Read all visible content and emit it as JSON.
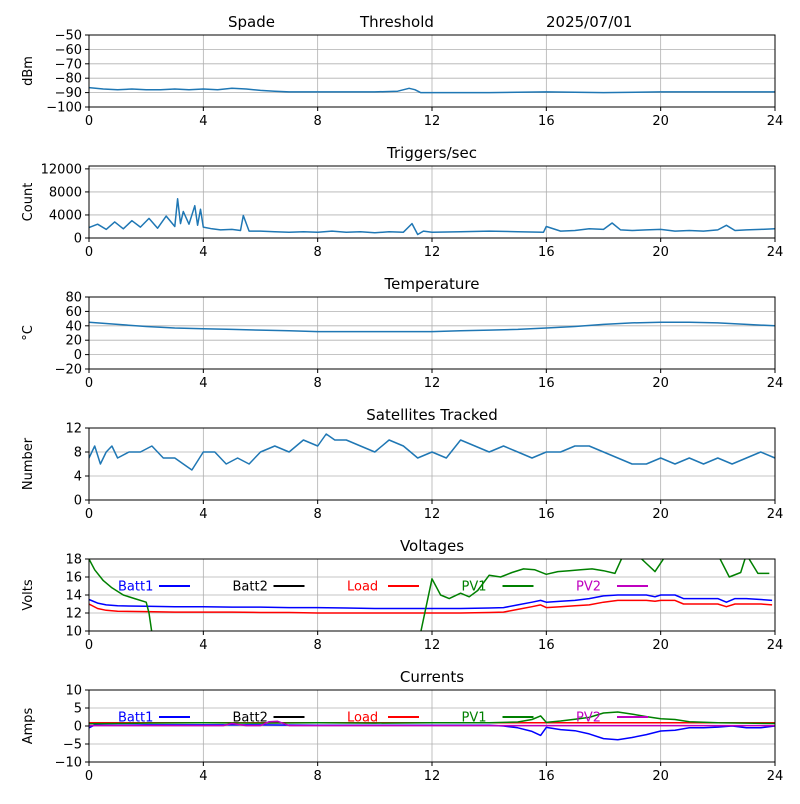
{
  "header": {
    "site": "Spade",
    "mode": "Threshold",
    "date": "2025/07/01"
  },
  "colors": {
    "default_line": "#1f77b4",
    "grid": "#b0b0b0",
    "batt1": "#0000ff",
    "batt2": "#000000",
    "load": "#ff0000",
    "pv1": "#008000",
    "pv2": "#bf00bf"
  },
  "chart_data": [
    {
      "type": "line",
      "title": "",
      "ylabel": "dBm",
      "xlim": [
        0,
        24
      ],
      "ylim": [
        -100,
        -50
      ],
      "xticks": [
        0,
        4,
        8,
        12,
        16,
        20,
        24
      ],
      "yticks": [
        -100,
        -90,
        -80,
        -70,
        -60,
        -50
      ],
      "grid": true,
      "series": [
        {
          "name": "",
          "color": "#1f77b4",
          "x": [
            0,
            0.5,
            1,
            1.5,
            2,
            2.5,
            3,
            3.5,
            4,
            4.5,
            5,
            5.5,
            6,
            6.5,
            7,
            8,
            9,
            10,
            10.8,
            11.2,
            11.4,
            11.6,
            12,
            14,
            16,
            18,
            20,
            22,
            24
          ],
          "y": [
            -86.5,
            -87.5,
            -88,
            -87.5,
            -88,
            -88,
            -87.5,
            -88,
            -87.5,
            -88,
            -87,
            -87.5,
            -88.5,
            -89,
            -89.5,
            -89.5,
            -89.5,
            -89.5,
            -89,
            -87,
            -88,
            -90,
            -90,
            -90,
            -89.5,
            -90,
            -89.5,
            -89.5,
            -89.5
          ]
        }
      ]
    },
    {
      "type": "line",
      "title": "Triggers/sec",
      "ylabel": "Count",
      "xlim": [
        0,
        24
      ],
      "ylim": [
        0,
        12500
      ],
      "xticks": [
        0,
        4,
        8,
        12,
        16,
        20,
        24
      ],
      "yticks": [
        0,
        4000,
        8000,
        12000
      ],
      "grid": true,
      "series": [
        {
          "name": "",
          "color": "#1f77b4",
          "x": [
            0,
            0.3,
            0.6,
            0.9,
            1.2,
            1.5,
            1.8,
            2.1,
            2.4,
            2.7,
            3.0,
            3.1,
            3.2,
            3.3,
            3.5,
            3.7,
            3.8,
            3.9,
            4.0,
            4.3,
            4.6,
            5.0,
            5.3,
            5.4,
            5.6,
            6.0,
            6.5,
            7.0,
            7.5,
            8.0,
            8.5,
            9.0,
            9.5,
            10.0,
            10.5,
            11.0,
            11.3,
            11.5,
            11.7,
            12.0,
            13,
            14,
            15,
            15.9,
            16.0,
            16.5,
            17,
            17.5,
            18,
            18.3,
            18.6,
            19,
            19.5,
            20,
            20.5,
            21,
            21.5,
            22,
            22.3,
            22.6,
            23,
            23.5,
            24
          ],
          "y": [
            1800,
            2400,
            1500,
            2800,
            1600,
            3000,
            1900,
            3400,
            1700,
            3800,
            2000,
            6800,
            2500,
            4600,
            2400,
            5600,
            2200,
            5000,
            1900,
            1600,
            1400,
            1500,
            1300,
            3900,
            1200,
            1200,
            1100,
            1000,
            1100,
            1000,
            1200,
            1000,
            1100,
            900,
            1100,
            1000,
            2500,
            600,
            1200,
            1000,
            1100,
            1200,
            1100,
            1000,
            2000,
            1200,
            1300,
            1600,
            1500,
            2600,
            1400,
            1300,
            1400,
            1500,
            1200,
            1300,
            1200,
            1400,
            2200,
            1300,
            1400,
            1500,
            1600
          ]
        }
      ]
    },
    {
      "type": "line",
      "title": "Temperature",
      "ylabel": "°C",
      "xlim": [
        0,
        24
      ],
      "ylim": [
        -20,
        80
      ],
      "xticks": [
        0,
        4,
        8,
        12,
        16,
        20,
        24
      ],
      "yticks": [
        -20,
        0,
        20,
        40,
        60,
        80
      ],
      "grid": true,
      "series": [
        {
          "name": "",
          "color": "#1f77b4",
          "x": [
            0,
            1,
            2,
            3,
            4,
            5,
            6,
            7,
            8,
            9,
            10,
            11,
            12,
            13,
            14,
            15,
            16,
            17,
            18,
            19,
            20,
            21,
            22,
            23,
            24
          ],
          "y": [
            45,
            42,
            39,
            37,
            36,
            35,
            34,
            33,
            32,
            32,
            32,
            32,
            32,
            33,
            34,
            35,
            37,
            39,
            42,
            44,
            45,
            45,
            44,
            42,
            40
          ]
        }
      ]
    },
    {
      "type": "line",
      "title": "Satellites Tracked",
      "ylabel": "Number",
      "xlim": [
        0,
        24
      ],
      "ylim": [
        0,
        12
      ],
      "xticks": [
        0,
        4,
        8,
        12,
        16,
        20,
        24
      ],
      "yticks": [
        0,
        4,
        8,
        12
      ],
      "grid": true,
      "series": [
        {
          "name": "",
          "color": "#1f77b4",
          "x": [
            0,
            0.2,
            0.4,
            0.6,
            0.8,
            1.0,
            1.4,
            1.8,
            2.2,
            2.6,
            3.0,
            3.3,
            3.6,
            4.0,
            4.4,
            4.8,
            5.2,
            5.6,
            6.0,
            6.5,
            7.0,
            7.5,
            8.0,
            8.3,
            8.6,
            9.0,
            9.5,
            10.0,
            10.5,
            11.0,
            11.5,
            12.0,
            12.5,
            13.0,
            13.5,
            14.0,
            14.5,
            15.0,
            15.5,
            16.0,
            16.5,
            17.0,
            17.5,
            18.0,
            18.5,
            19.0,
            19.5,
            20.0,
            20.5,
            21.0,
            21.5,
            22.0,
            22.5,
            23.0,
            23.5,
            24
          ],
          "y": [
            7,
            9,
            6,
            8,
            9,
            7,
            8,
            8,
            9,
            7,
            7,
            6,
            5,
            8,
            8,
            6,
            7,
            6,
            8,
            9,
            8,
            10,
            9,
            11,
            10,
            10,
            9,
            8,
            10,
            9,
            7,
            8,
            7,
            10,
            9,
            8,
            9,
            8,
            7,
            8,
            8,
            9,
            9,
            8,
            7,
            6,
            6,
            7,
            6,
            7,
            6,
            7,
            6,
            7,
            8,
            7
          ]
        }
      ]
    },
    {
      "type": "line",
      "title": "Voltages",
      "ylabel": "Volts",
      "xlim": [
        0,
        24
      ],
      "ylim": [
        10,
        18
      ],
      "xticks": [
        0,
        4,
        8,
        12,
        16,
        20,
        24
      ],
      "yticks": [
        10,
        12,
        14,
        16,
        18
      ],
      "grid": true,
      "legend": "top, single row",
      "series": [
        {
          "name": "Batt1",
          "color": "#0000ff",
          "x": [
            0,
            0.3,
            0.6,
            1,
            2,
            3,
            4,
            5,
            6,
            7,
            8,
            9,
            10,
            11,
            12,
            13,
            14,
            14.5,
            15,
            15.5,
            15.8,
            16,
            16.5,
            17,
            17.5,
            18,
            18.5,
            19,
            19.5,
            19.8,
            20,
            20.5,
            20.8,
            21,
            21.5,
            22,
            22.3,
            22.6,
            23,
            23.5,
            23.9
          ],
          "y": [
            13.5,
            13.1,
            12.9,
            12.8,
            12.75,
            12.7,
            12.7,
            12.65,
            12.65,
            12.6,
            12.6,
            12.55,
            12.5,
            12.5,
            12.5,
            12.5,
            12.55,
            12.6,
            12.9,
            13.2,
            13.4,
            13.2,
            13.3,
            13.4,
            13.6,
            13.9,
            14.0,
            14.0,
            14.0,
            13.8,
            14.0,
            14.0,
            13.6,
            13.6,
            13.6,
            13.6,
            13.2,
            13.6,
            13.6,
            13.5,
            13.4
          ]
        },
        {
          "name": "Batt2",
          "color": "#000000",
          "x": [],
          "y": []
        },
        {
          "name": "Load",
          "color": "#ff0000",
          "x": [
            0,
            0.3,
            0.6,
            1,
            2,
            3,
            4,
            5,
            6,
            7,
            8,
            9,
            10,
            11,
            12,
            13,
            14,
            14.5,
            15,
            15.5,
            15.8,
            16,
            16.5,
            17,
            17.5,
            18,
            18.5,
            19,
            19.5,
            19.8,
            20,
            20.5,
            20.8,
            21,
            21.5,
            22,
            22.3,
            22.6,
            23,
            23.5,
            23.9
          ],
          "y": [
            13.0,
            12.5,
            12.3,
            12.2,
            12.15,
            12.1,
            12.1,
            12.1,
            12.05,
            12.05,
            12.0,
            12.0,
            12.0,
            12.0,
            12.0,
            12.0,
            12.05,
            12.1,
            12.4,
            12.7,
            12.9,
            12.6,
            12.7,
            12.8,
            12.9,
            13.2,
            13.4,
            13.4,
            13.4,
            13.3,
            13.4,
            13.4,
            13.0,
            13.0,
            13.0,
            13.0,
            12.7,
            13.0,
            13.0,
            13.0,
            12.9
          ]
        },
        {
          "name": "PV1",
          "color": "#008000",
          "x": [
            0,
            0.2,
            0.5,
            0.8,
            1.2,
            1.6,
            2.0,
            2.1,
            2.2,
            11.6,
            12.0,
            12.3,
            12.6,
            13.0,
            13.3,
            13.6,
            14.0,
            14.4,
            14.8,
            15.2,
            15.6,
            16.0,
            16.4,
            16.8,
            17.2,
            17.6,
            18.0,
            18.4,
            18.7,
            19.2,
            19.5,
            19.8,
            20.2,
            21.0,
            22.0,
            22.4,
            22.8,
            23.0,
            23.4,
            23.8
          ],
          "y": [
            18.0,
            16.8,
            15.6,
            14.8,
            14.0,
            13.6,
            13.2,
            12.0,
            9.8,
            9.8,
            15.8,
            14.0,
            13.6,
            14.2,
            13.8,
            14.5,
            16.2,
            16.0,
            16.5,
            16.9,
            16.8,
            16.3,
            16.6,
            16.7,
            16.8,
            16.9,
            16.7,
            16.4,
            18.5,
            18.4,
            17.5,
            16.6,
            18.5,
            18.5,
            18.5,
            16.0,
            16.5,
            18.5,
            16.4,
            16.4
          ]
        },
        {
          "name": "PV2",
          "color": "#bf00bf",
          "x": [],
          "y": []
        }
      ]
    },
    {
      "type": "line",
      "title": "Currents",
      "ylabel": "Amps",
      "xlim": [
        0,
        24
      ],
      "ylim": [
        -10,
        10
      ],
      "xticks": [
        0,
        4,
        8,
        12,
        16,
        20,
        24
      ],
      "yticks": [
        -10,
        -5,
        0,
        5,
        10
      ],
      "grid": true,
      "legend": "top, single row",
      "series": [
        {
          "name": "Batt1",
          "color": "#0000ff",
          "x": [
            0,
            0.2,
            0.5,
            1,
            2,
            4,
            6,
            8,
            10,
            12,
            14,
            14.5,
            15,
            15.5,
            15.8,
            16,
            16.5,
            17,
            17.5,
            18,
            18.5,
            19,
            19.5,
            20,
            20.5,
            21,
            21.5,
            22,
            22.5,
            23,
            23.5,
            24
          ],
          "y": [
            -0.5,
            0.3,
            0.2,
            0.2,
            0.3,
            0.3,
            0.3,
            0.2,
            0.2,
            0.2,
            0.2,
            0.0,
            -0.5,
            -1.5,
            -2.6,
            -0.4,
            -1.0,
            -1.3,
            -2.2,
            -3.5,
            -3.8,
            -3.2,
            -2.4,
            -1.4,
            -1.2,
            -0.5,
            -0.5,
            -0.3,
            0.0,
            -0.5,
            -0.5,
            0.0
          ]
        },
        {
          "name": "Batt2",
          "color": "#000000",
          "x": [],
          "y": []
        },
        {
          "name": "Load",
          "color": "#ff0000",
          "x": [
            0,
            4,
            8,
            12,
            16,
            20,
            24
          ],
          "y": [
            0.9,
            0.9,
            0.9,
            0.9,
            0.9,
            0.9,
            0.9
          ]
        },
        {
          "name": "PV1",
          "color": "#008000",
          "x": [
            0,
            2,
            4,
            6,
            8,
            10,
            12,
            14,
            15,
            15.5,
            15.8,
            16,
            16.5,
            17,
            17.5,
            18,
            18.5,
            19,
            19.5,
            20,
            20.5,
            21,
            22,
            23,
            24
          ],
          "y": [
            0.6,
            0.8,
            0.9,
            0.8,
            0.9,
            0.8,
            0.9,
            0.9,
            1.1,
            1.8,
            2.8,
            1.0,
            1.4,
            1.9,
            2.4,
            3.6,
            3.9,
            3.3,
            2.6,
            2.0,
            1.8,
            1.2,
            0.9,
            0.8,
            0.7
          ]
        },
        {
          "name": "PV2",
          "color": "#bf00bf",
          "x": [
            0,
            4,
            4.7,
            5,
            5.5,
            6,
            6.3,
            6.6,
            7,
            8,
            12,
            16,
            20,
            24
          ],
          "y": [
            0.1,
            0.1,
            0.1,
            0.7,
            0.1,
            0.1,
            1.2,
            1.3,
            0.1,
            0.1,
            0.1,
            0.1,
            0.1,
            0.1
          ]
        }
      ]
    }
  ]
}
